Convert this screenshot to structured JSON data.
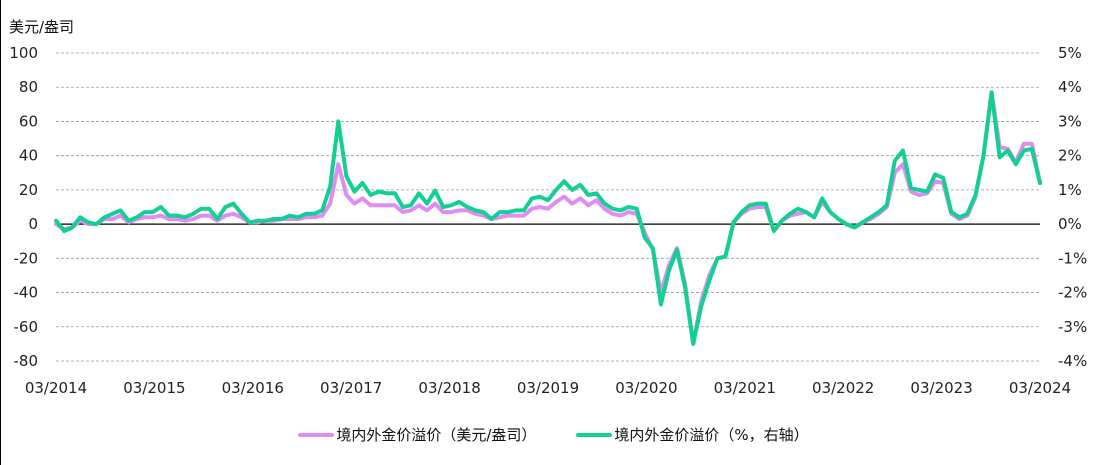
{
  "chart_data": {
    "type": "line",
    "title": "",
    "ylabel_left": "美元/盎司",
    "ylabel_right": "%",
    "xlabel": "",
    "ylim_left": [
      -80,
      100
    ],
    "ylim_right": [
      -4,
      5
    ],
    "yticks_left": [
      "100",
      "80",
      "60",
      "40",
      "20",
      "0",
      "-20",
      "-40",
      "-60",
      "-80"
    ],
    "yticks_right": [
      "5%",
      "4%",
      "3%",
      "2%",
      "1%",
      "0%",
      "-1%",
      "-2%",
      "-3%",
      "-4%"
    ],
    "xticks": [
      "03/2014",
      "03/2015",
      "03/2016",
      "03/2017",
      "03/2018",
      "03/2019",
      "03/2020",
      "03/2021",
      "03/2022",
      "03/2023",
      "03/2024"
    ],
    "grid": true,
    "legend_position": "bottom",
    "series": [
      {
        "name": "境内外金价溢价（美元/盎司）",
        "axis": "left",
        "color": "#E08CF5",
        "x_start": "03/2014",
        "frequency": "monthly",
        "values": [
          0,
          -3,
          -2,
          2,
          0,
          0,
          3,
          3,
          5,
          1,
          3,
          4,
          4,
          5,
          3,
          3,
          2,
          3,
          5,
          5,
          2,
          5,
          6,
          4,
          1,
          1,
          2,
          2,
          3,
          3,
          3,
          4,
          4,
          5,
          12,
          35,
          17,
          12,
          15,
          11,
          11,
          11,
          11,
          7,
          8,
          11,
          8,
          12,
          7,
          7,
          8,
          8,
          6,
          5,
          3,
          4,
          5,
          5,
          5,
          9,
          10,
          9,
          13,
          16,
          12,
          15,
          11,
          14,
          9,
          6,
          5,
          7,
          6,
          -5,
          -15,
          -40,
          -24,
          -14,
          -35,
          -70,
          -45,
          -30,
          -20,
          -19,
          1,
          6,
          9,
          10,
          10,
          -4,
          2,
          5,
          6,
          7,
          4,
          13,
          7,
          3,
          0,
          -2,
          1,
          3,
          6,
          10,
          30,
          35,
          19,
          17,
          18,
          25,
          24,
          6,
          3,
          5,
          16,
          40,
          77,
          45,
          44,
          36,
          47,
          47,
          24
        ]
      },
      {
        "name": "境内外金价溢价（%，右轴）",
        "axis": "right",
        "color": "#14CF94",
        "x_start": "03/2014",
        "frequency": "monthly",
        "values": [
          0.1,
          -0.2,
          -0.1,
          0.2,
          0.05,
          0,
          0.2,
          0.3,
          0.4,
          0.1,
          0.2,
          0.35,
          0.35,
          0.5,
          0.25,
          0.25,
          0.2,
          0.3,
          0.45,
          0.45,
          0.15,
          0.5,
          0.6,
          0.3,
          0.05,
          0.1,
          0.1,
          0.15,
          0.15,
          0.25,
          0.2,
          0.3,
          0.3,
          0.4,
          1.1,
          3.0,
          1.4,
          0.95,
          1.2,
          0.85,
          0.95,
          0.9,
          0.9,
          0.5,
          0.55,
          0.9,
          0.6,
          0.98,
          0.5,
          0.55,
          0.65,
          0.5,
          0.4,
          0.35,
          0.15,
          0.35,
          0.35,
          0.4,
          0.4,
          0.75,
          0.8,
          0.7,
          1.0,
          1.25,
          1.0,
          1.15,
          0.85,
          0.9,
          0.6,
          0.45,
          0.4,
          0.5,
          0.45,
          -0.4,
          -0.7,
          -2.35,
          -1.35,
          -0.75,
          -1.85,
          -3.5,
          -2.4,
          -1.65,
          -1.0,
          -0.95,
          0.05,
          0.35,
          0.55,
          0.6,
          0.6,
          -0.2,
          0.1,
          0.3,
          0.45,
          0.35,
          0.2,
          0.75,
          0.35,
          0.15,
          0.0,
          -0.1,
          0.05,
          0.2,
          0.35,
          0.55,
          1.85,
          2.15,
          1.05,
          1.0,
          0.95,
          1.45,
          1.35,
          0.35,
          0.2,
          0.3,
          0.85,
          2.0,
          3.85,
          1.95,
          2.15,
          1.75,
          2.15,
          2.2,
          1.2
        ]
      }
    ]
  },
  "axes": {
    "left_unit": "美元/盎司"
  },
  "legend": {
    "items": [
      {
        "label": "境内外金价溢价（美元/盎司）",
        "color": "#E08CF5"
      },
      {
        "label": "境内外金价溢价（%，右轴）",
        "color": "#14CF94"
      }
    ]
  }
}
